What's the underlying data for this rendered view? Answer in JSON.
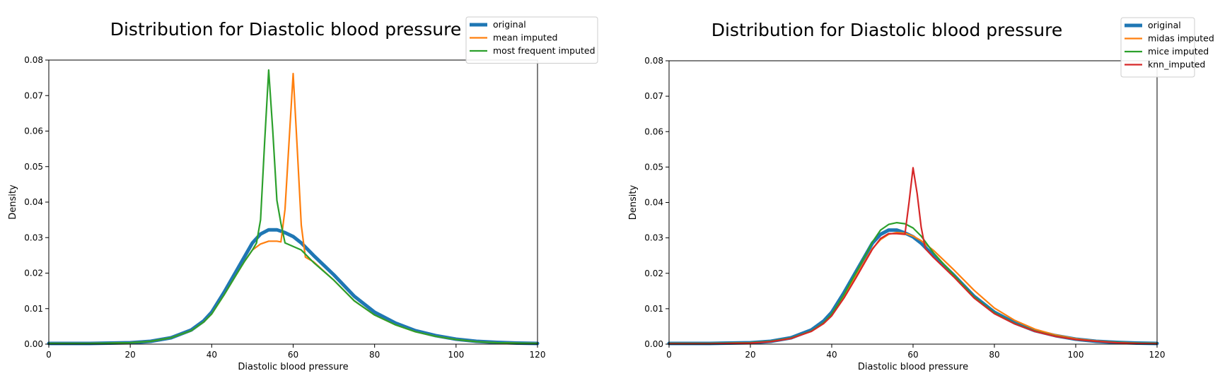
{
  "chart_data": [
    {
      "type": "line",
      "title": "Distribution for Diastolic blood pressure",
      "xlabel": "Diastolic blood pressure",
      "ylabel": "Density",
      "xlim": [
        0,
        120
      ],
      "ylim": [
        0,
        0.08
      ],
      "xticks": [
        "0",
        "20",
        "40",
        "60",
        "80",
        "100",
        "120"
      ],
      "yticks": [
        "0.00",
        "0.01",
        "0.02",
        "0.03",
        "0.04",
        "0.05",
        "0.06",
        "0.07",
        "0.08"
      ],
      "grid": false,
      "legend_position": "top-right, outside the plot area",
      "series": [
        {
          "name": "original",
          "color": "#1f77b4",
          "x": [
            0,
            10,
            20,
            25,
            30,
            35,
            38,
            40,
            43,
            46,
            48,
            50,
            52,
            54,
            56,
            58,
            60,
            62,
            65,
            70,
            75,
            80,
            85,
            90,
            95,
            100,
            105,
            110,
            115,
            120
          ],
          "y": [
            0.0002,
            0.0002,
            0.0004,
            0.0008,
            0.0018,
            0.004,
            0.0065,
            0.009,
            0.0145,
            0.0205,
            0.0245,
            0.0285,
            0.031,
            0.0322,
            0.0322,
            0.0314,
            0.0303,
            0.0285,
            0.025,
            0.0195,
            0.0135,
            0.009,
            0.006,
            0.0038,
            0.0024,
            0.0014,
            0.0008,
            0.0005,
            0.0003,
            0.0002
          ]
        },
        {
          "name": "mean imputed",
          "color": "#ff7f0e",
          "x": [
            0,
            10,
            20,
            25,
            30,
            35,
            38,
            40,
            43,
            46,
            48,
            50,
            52,
            54,
            56,
            57,
            58,
            59,
            60,
            61,
            62,
            63,
            65,
            70,
            75,
            80,
            85,
            90,
            95,
            100,
            105,
            110,
            115,
            120
          ],
          "y": [
            0.0002,
            0.0002,
            0.0004,
            0.0008,
            0.0018,
            0.0038,
            0.0062,
            0.0085,
            0.0138,
            0.0195,
            0.0232,
            0.0265,
            0.0282,
            0.029,
            0.029,
            0.0288,
            0.038,
            0.057,
            0.0762,
            0.055,
            0.0335,
            0.0245,
            0.0232,
            0.018,
            0.0122,
            0.0082,
            0.0055,
            0.0035,
            0.0022,
            0.0013,
            0.0007,
            0.0004,
            0.0003,
            0.0002
          ]
        },
        {
          "name": "most frequent imputed",
          "color": "#2ca02c",
          "x": [
            0,
            10,
            20,
            25,
            30,
            35,
            38,
            40,
            43,
            46,
            48,
            50,
            51,
            52,
            53,
            54,
            55,
            56,
            57,
            58,
            60,
            62,
            65,
            70,
            75,
            80,
            85,
            90,
            95,
            100,
            105,
            110,
            115,
            120
          ],
          "y": [
            0.0002,
            0.0002,
            0.0004,
            0.0008,
            0.0018,
            0.0038,
            0.0062,
            0.0085,
            0.0138,
            0.0195,
            0.0232,
            0.0265,
            0.0285,
            0.035,
            0.057,
            0.0772,
            0.06,
            0.0405,
            0.034,
            0.0285,
            0.0275,
            0.0265,
            0.023,
            0.018,
            0.0122,
            0.0082,
            0.0055,
            0.0035,
            0.0022,
            0.0013,
            0.0007,
            0.0004,
            0.0003,
            0.0002
          ]
        }
      ]
    },
    {
      "type": "line",
      "title": "Distribution for Diastolic blood pressure",
      "xlabel": "Diastolic blood pressure",
      "ylabel": "Density",
      "xlim": [
        0,
        120
      ],
      "ylim": [
        0,
        0.08
      ],
      "xticks": [
        "0",
        "20",
        "40",
        "60",
        "80",
        "100",
        "120"
      ],
      "yticks": [
        "0.00",
        "0.01",
        "0.02",
        "0.03",
        "0.04",
        "0.05",
        "0.06",
        "0.07",
        "0.08"
      ],
      "grid": false,
      "legend_position": "top-right, outside the plot area",
      "series": [
        {
          "name": "original",
          "color": "#1f77b4",
          "x": [
            0,
            10,
            20,
            25,
            30,
            35,
            38,
            40,
            43,
            46,
            48,
            50,
            52,
            54,
            56,
            58,
            60,
            62,
            65,
            70,
            75,
            80,
            85,
            90,
            95,
            100,
            105,
            110,
            115,
            120
          ],
          "y": [
            0.0002,
            0.0002,
            0.0004,
            0.0008,
            0.0018,
            0.004,
            0.0065,
            0.009,
            0.0145,
            0.0205,
            0.0245,
            0.0285,
            0.031,
            0.0322,
            0.0322,
            0.0314,
            0.0303,
            0.0285,
            0.025,
            0.0195,
            0.0135,
            0.009,
            0.006,
            0.0038,
            0.0024,
            0.0014,
            0.0008,
            0.0005,
            0.0003,
            0.0002
          ]
        },
        {
          "name": "midas imputed",
          "color": "#ff7f0e",
          "x": [
            0,
            10,
            20,
            25,
            30,
            35,
            38,
            40,
            43,
            46,
            48,
            50,
            52,
            54,
            56,
            58,
            60,
            62,
            65,
            70,
            75,
            80,
            85,
            90,
            95,
            100,
            105,
            110,
            115,
            120
          ],
          "y": [
            0.0002,
            0.0002,
            0.0004,
            0.0008,
            0.0017,
            0.0037,
            0.006,
            0.0083,
            0.0135,
            0.0193,
            0.0232,
            0.027,
            0.0295,
            0.031,
            0.0315,
            0.0313,
            0.0305,
            0.0292,
            0.0265,
            0.021,
            0.0152,
            0.0102,
            0.0067,
            0.0042,
            0.0026,
            0.0015,
            0.0009,
            0.0005,
            0.0003,
            0.0002
          ]
        },
        {
          "name": "mice imputed",
          "color": "#2ca02c",
          "x": [
            0,
            10,
            20,
            25,
            30,
            35,
            38,
            40,
            43,
            46,
            48,
            50,
            52,
            54,
            56,
            58,
            60,
            62,
            65,
            70,
            75,
            80,
            85,
            90,
            95,
            100,
            105,
            110,
            115,
            120
          ],
          "y": [
            0.0002,
            0.0002,
            0.0004,
            0.0008,
            0.0017,
            0.0037,
            0.006,
            0.0085,
            0.014,
            0.0202,
            0.0245,
            0.0288,
            0.0322,
            0.0338,
            0.0343,
            0.034,
            0.0328,
            0.0305,
            0.0258,
            0.0195,
            0.0133,
            0.0088,
            0.0058,
            0.0037,
            0.0023,
            0.0013,
            0.0008,
            0.0005,
            0.0003,
            0.0002
          ]
        },
        {
          "name": "knn_imputed",
          "color": "#d62728",
          "x": [
            0,
            10,
            20,
            25,
            30,
            35,
            38,
            40,
            43,
            46,
            48,
            50,
            52,
            54,
            56,
            58,
            59,
            60,
            61,
            62,
            63,
            65,
            70,
            75,
            80,
            85,
            90,
            95,
            100,
            105,
            110,
            115,
            120
          ],
          "y": [
            0.0001,
            0.0001,
            0.0003,
            0.0007,
            0.0016,
            0.0036,
            0.0058,
            0.008,
            0.013,
            0.0188,
            0.0228,
            0.0268,
            0.0298,
            0.0312,
            0.0312,
            0.031,
            0.04,
            0.0498,
            0.0425,
            0.033,
            0.027,
            0.0245,
            0.019,
            0.013,
            0.0086,
            0.0057,
            0.0036,
            0.0022,
            0.0013,
            0.0008,
            0.0004,
            0.0002,
            0.0001
          ]
        }
      ]
    }
  ]
}
